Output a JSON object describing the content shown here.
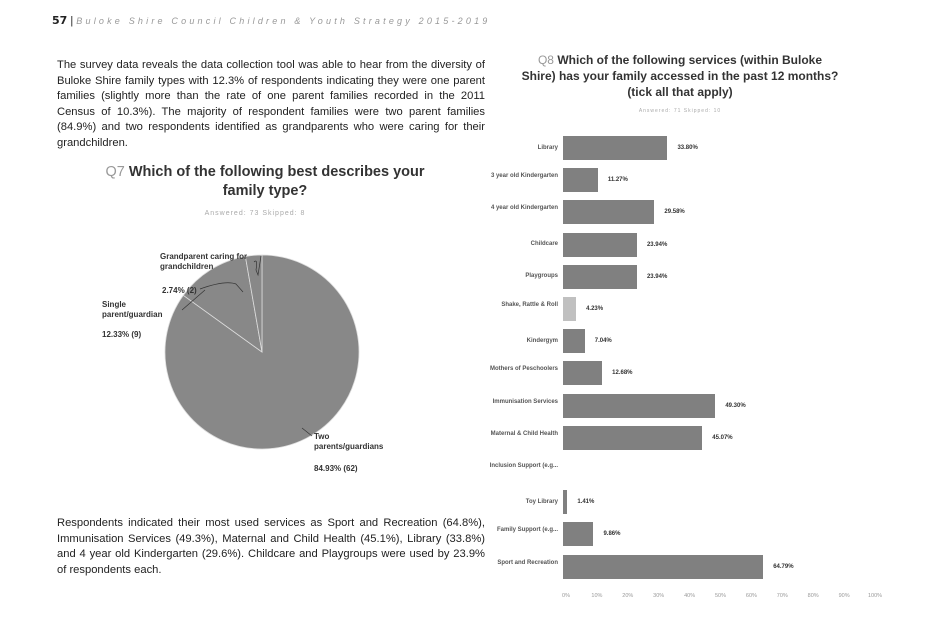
{
  "header": {
    "page_number": "57",
    "title": "Buloke Shire Council Children & Youth Strategy 2015-2019"
  },
  "paragraphs": [
    "The survey data reveals the data collection tool was able to hear from the diversity of Buloke Shire family types with 12.3% of respondents indicating they were one parent families (slightly more than the rate of one parent families recorded in the 2011 Census of 10.3%). The majority of respondent families were two parent families (84.9%) and two respondents identified as grandparents who were caring for their grandchildren.",
    "Respondents indicated their most used services as Sport and Recreation (64.8%), Immunisation Services (49.3%), Maternal and Child Health (45.1%), Library (33.8%) and 4 year old Kindergarten (29.6%). Childcare and Playgroups were used by 23.9% of respondents each."
  ],
  "chart_data": [
    {
      "type": "pie",
      "qnum": "Q7",
      "title": "Which of the following best describes your family type?",
      "subtitle": "Answered: 73   Skipped: 8",
      "slices": [
        {
          "label": "Two parents/guardians",
          "value": 84.93,
          "count": 62,
          "display": "84.93% (62)"
        },
        {
          "label": "Single parent/guardian",
          "value": 12.33,
          "count": 9,
          "display": "12.33% (9)"
        },
        {
          "label": "Grandparent caring for grandchildren",
          "value": 2.74,
          "count": 2,
          "display": "2.74% (2)"
        }
      ],
      "color": "#888888"
    },
    {
      "type": "bar",
      "orientation": "horizontal",
      "qnum": "Q8",
      "title": "Which of the following services (within Buloke Shire) has your family accessed in the past 12 months? (tick all that apply)",
      "subtitle": "Answered: 71   Skipped: 10",
      "categories": [
        "Library",
        "3 year old Kindergarten",
        "4 year old Kindergarten",
        "Childcare",
        "Playgroups",
        "Shake, Rattle & Roll",
        "Kindergym",
        "Mothers of Peschoolers",
        "Immunisation Services",
        "Maternal & Child Health",
        "Inclusion Support (e.g...",
        "Toy Library",
        "Family Support (e.g...",
        "Sport and Recreation"
      ],
      "values": [
        33.8,
        11.27,
        29.58,
        23.94,
        23.94,
        4.23,
        7.04,
        12.68,
        49.3,
        45.07,
        0,
        1.41,
        9.86,
        64.79
      ],
      "labels": [
        "33.80%",
        "11.27%",
        "29.58%",
        "23.94%",
        "23.94%",
        "4.23%",
        "7.04%",
        "12.68%",
        "49.30%",
        "45.07%",
        "",
        "1.41%",
        "9.86%",
        "64.79%"
      ],
      "xlim": [
        0,
        100
      ],
      "xticks": [
        "0%",
        "10%",
        "20%",
        "30%",
        "40%",
        "50%",
        "60%",
        "70%",
        "80%",
        "90%",
        "100%"
      ],
      "color": "#808080",
      "highlight_color": "#c0c0c0",
      "highlight_index": 5
    }
  ]
}
